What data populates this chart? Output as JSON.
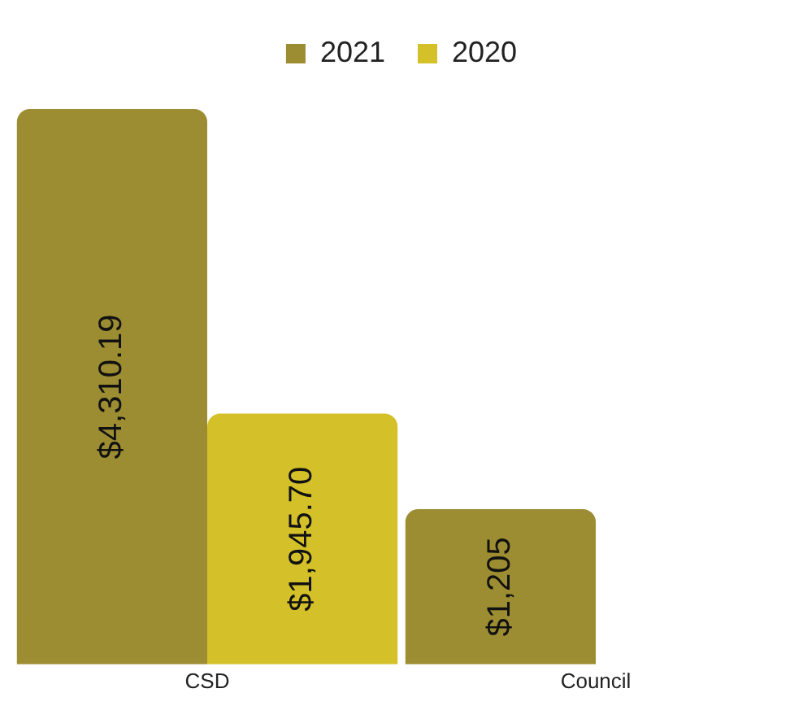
{
  "chart_data": {
    "type": "bar",
    "categories": [
      "CSD",
      "Council"
    ],
    "series": [
      {
        "name": "2021",
        "color": "#9c8d32",
        "values": [
          4310.19,
          1205
        ],
        "value_labels": [
          "$4,310.19",
          "$1,205"
        ]
      },
      {
        "name": "2020",
        "color": "#d4c12a",
        "values": [
          1945.7,
          null
        ],
        "value_labels": [
          "$1,945.70",
          null
        ]
      }
    ],
    "legend": "top",
    "grid": false
  }
}
